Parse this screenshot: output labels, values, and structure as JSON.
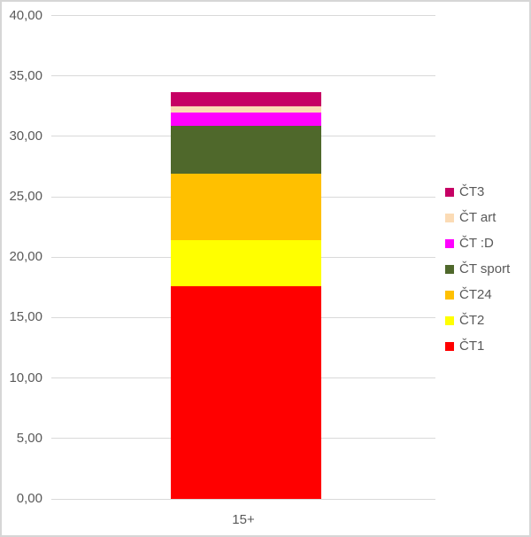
{
  "chart_data": {
    "type": "bar",
    "stacked": true,
    "title": "",
    "xlabel": "",
    "ylabel": "",
    "categories": [
      "15+"
    ],
    "series": [
      {
        "name": "ČT1",
        "color": "#ff0000",
        "values": [
          17.6
        ]
      },
      {
        "name": "ČT2",
        "color": "#ffff00",
        "values": [
          3.8
        ]
      },
      {
        "name": "ČT24",
        "color": "#ffc000",
        "values": [
          5.5
        ]
      },
      {
        "name": "ČT sport",
        "color": "#4f682b",
        "values": [
          4.0
        ]
      },
      {
        "name": "ČT :D",
        "color": "#ff00ff",
        "values": [
          1.1
        ]
      },
      {
        "name": "ČT art",
        "color": "#fbdbb5",
        "values": [
          0.45
        ]
      },
      {
        "name": "ČT3",
        "color": "#c60064",
        "values": [
          1.2
        ]
      }
    ],
    "stack_total": 33.65,
    "ylim": [
      0,
      40
    ],
    "ytick_step": 5,
    "ytick_labels": [
      "0,00",
      "5,00",
      "10,00",
      "15,00",
      "20,00",
      "25,00",
      "30,00",
      "35,00",
      "40,00"
    ],
    "grid": true,
    "legend": {
      "position": "right",
      "entries_top_to_bottom": [
        "ČT3",
        "ČT art",
        "ČT :D",
        "ČT sport",
        "ČT24",
        "ČT2",
        "ČT1"
      ]
    },
    "colors": {
      "gridline": "#d9d9d9",
      "axis_line": "#d9d9d9",
      "tick_text": "#595959",
      "frame_border": "#d6d6d6",
      "background": "#ffffff"
    }
  }
}
